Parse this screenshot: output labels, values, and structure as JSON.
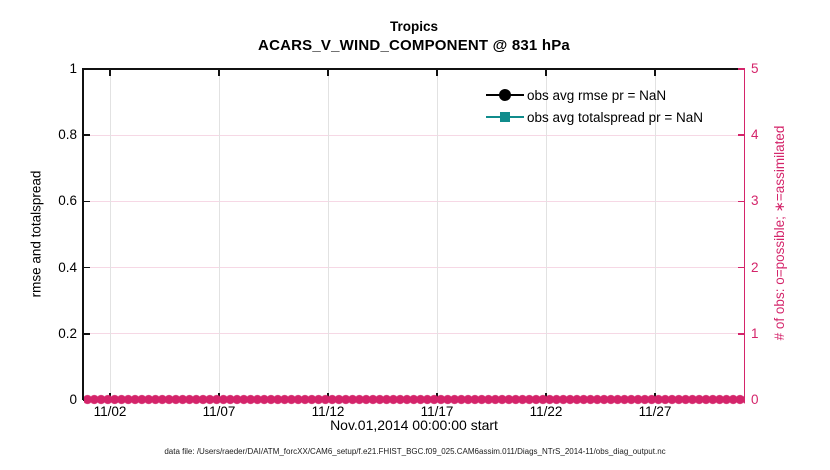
{
  "title": {
    "line1": "Tropics",
    "line2": "ACARS_V_WIND_COMPONENT @ 831 hPa"
  },
  "axes": {
    "left": {
      "label": "rmse and totalspread",
      "ticks_top_to_bottom": [
        "1",
        "0.8",
        "0.6",
        "0.4",
        "0.2",
        "0"
      ]
    },
    "right": {
      "label": "# of obs: o=possible; ∗=assimilated",
      "ticks_top_to_bottom": [
        "5",
        "4",
        "3",
        "2",
        "1",
        "0"
      ]
    },
    "x": {
      "ticks": [
        "11/02",
        "11/07",
        "11/12",
        "11/17",
        "11/22",
        "11/27"
      ],
      "label": "Nov.01,2014 00:00:00 start"
    }
  },
  "legend": {
    "entries": [
      {
        "label": "obs avg rmse pr = NaN",
        "marker": "filled-circle",
        "color": "#000000"
      },
      {
        "label": "obs avg totalspread pr = NaN",
        "marker": "filled-square",
        "color": "#108c8c"
      }
    ]
  },
  "footer": "data file: /Users/raeder/DAI/ATM_forcXX/CAM6_setup/f.e21.FHIST_BGC.f09_025.CAM6assim.011/Diags_NTrS_2014-11/obs_diag_output.nc",
  "colors": {
    "accent_pink": "#d4246a",
    "grid_pink": "#f6d8e5",
    "teal": "#108c8c",
    "grid_gray": "#e2e2e2",
    "black": "#000000"
  },
  "chart_data": {
    "type": "line",
    "title": "Tropics",
    "subtitle": "ACARS_V_WIND_COMPONENT @ 831 hPa",
    "xlabel": "Nov.01,2014 00:00:00 start",
    "x_ticks": [
      "11/02",
      "11/07",
      "11/12",
      "11/17",
      "11/22",
      "11/27"
    ],
    "x_range": [
      "2014-11-01",
      "2014-12-01"
    ],
    "y_left": {
      "label": "rmse and totalspread",
      "lim": [
        0,
        1
      ],
      "ticks": [
        0,
        0.2,
        0.4,
        0.6,
        0.8,
        1
      ]
    },
    "y_right": {
      "label": "# of obs: o=possible; ∗=assimilated",
      "lim": [
        0,
        5
      ],
      "ticks": [
        0,
        1,
        2,
        3,
        4,
        5
      ]
    },
    "grid": true,
    "legend_position": "upper-right-inside, no box",
    "series": [
      {
        "name": "obs avg rmse pr = NaN",
        "axis": "left",
        "marker": "filled-circle",
        "color": "#000000",
        "values": [],
        "note": "pr = NaN, no curve drawn"
      },
      {
        "name": "obs avg totalspread pr = NaN",
        "axis": "left",
        "marker": "filled-square",
        "color": "#108c8c",
        "values": [],
        "note": "pr = NaN, no curve drawn"
      },
      {
        "name": "# of obs possible (o) and assimilated (∗)",
        "axis": "right",
        "marker": "circle-and-asterisk",
        "color": "#d4246a",
        "constant_value": 0,
        "note": "dense overlapping markers at 0 for every time step from 11/01 to 12/01"
      }
    ]
  }
}
